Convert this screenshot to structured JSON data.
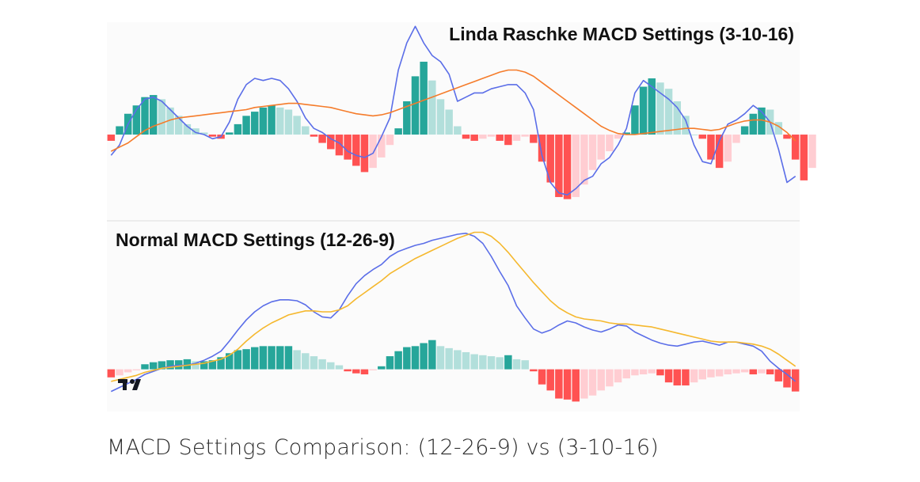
{
  "colors": {
    "hist_up_strong": "#26a69a",
    "hist_up_weak": "#b2dfdb",
    "hist_down_strong": "#ff5252",
    "hist_down_weak": "#ffcdd2",
    "macd_line": "#5b6ee8",
    "signal_top": "#f57c2b",
    "signal_bottom": "#f5b82e",
    "panel_bg": "#fbfbfb"
  },
  "logo": {
    "text": "TV"
  },
  "caption": "MACD Settings Comparison: (12-26-9) vs (3-10-16)",
  "chart_data": [
    {
      "type": "line",
      "title": "Linda Raschke MACD Settings (3-10-16)",
      "xlabel": "",
      "ylabel": "",
      "ylim": [
        -3.8,
        5.4
      ],
      "x": [
        0,
        1,
        2,
        3,
        4,
        5,
        6,
        7,
        8,
        9,
        10,
        11,
        12,
        13,
        14,
        15,
        16,
        17,
        18,
        19,
        20,
        21,
        22,
        23,
        24,
        25,
        26,
        27,
        28,
        29,
        30,
        31,
        32,
        33,
        34,
        35,
        36,
        37,
        38,
        39,
        40,
        41,
        42,
        43,
        44,
        45,
        46,
        47,
        48,
        49,
        50,
        51,
        52,
        53,
        54,
        55,
        56,
        57,
        58,
        59,
        60,
        61,
        62,
        63,
        64,
        65,
        66,
        67,
        68,
        69,
        70,
        71,
        72,
        73,
        74,
        75,
        76,
        77,
        78,
        79,
        80,
        81
      ],
      "histogram": [
        -0.3,
        0.4,
        1.0,
        1.4,
        1.8,
        1.9,
        1.7,
        1.3,
        0.9,
        0.5,
        0.3,
        0.1,
        -0.1,
        -0.2,
        0.1,
        0.5,
        0.9,
        1.1,
        1.3,
        1.4,
        1.3,
        1.2,
        0.9,
        0.4,
        -0.1,
        -0.4,
        -0.7,
        -1.0,
        -1.2,
        -1.5,
        -1.8,
        -1.6,
        -1.1,
        -0.5,
        0.3,
        1.6,
        2.8,
        3.5,
        2.6,
        1.7,
        1.2,
        0.4,
        -0.2,
        -0.3,
        -0.2,
        -0.1,
        -0.3,
        -0.5,
        -0.3,
        -0.1,
        -0.4,
        -1.3,
        -2.3,
        -3.0,
        -3.1,
        -3.0,
        -2.4,
        -1.7,
        -1.2,
        -0.8,
        -0.2,
        0.1,
        1.4,
        2.3,
        2.7,
        2.5,
        2.2,
        1.6,
        0.9,
        0.0,
        -0.2,
        -1.2,
        -1.6,
        -1.3,
        -0.4,
        0.4,
        1.0,
        1.3,
        1.2,
        0.6,
        -0.2,
        -1.2,
        -2.2,
        -1.6
      ],
      "series": [
        {
          "values": [
            -1.0,
            -0.5,
            0.5,
            1.2,
            1.7,
            1.8,
            1.6,
            1.2,
            0.8,
            0.4,
            0.1,
            0.0,
            -0.2,
            -0.1,
            0.6,
            1.7,
            2.4,
            2.7,
            2.6,
            2.7,
            2.6,
            2.2,
            1.6,
            0.8,
            0.3,
            0.1,
            -0.2,
            -0.4,
            -0.8,
            -1.0,
            -1.1,
            -0.9,
            -0.1,
            0.8,
            3.1,
            4.4,
            5.2,
            4.4,
            3.8,
            3.5,
            2.9,
            1.6,
            1.8,
            2.0,
            2.0,
            2.2,
            2.3,
            2.4,
            2.4,
            2.0,
            1.2,
            -1.0,
            -2.3,
            -2.8,
            -2.9,
            -2.6,
            -2.2,
            -2.0,
            -1.4,
            -1.1,
            -0.5,
            0.3,
            2.0,
            2.6,
            2.3,
            2.0,
            1.7,
            1.3,
            0.7,
            -0.5,
            -1.3,
            -1.4,
            -0.3,
            0.5,
            0.7,
            1.0,
            1.4,
            1.1,
            0.6,
            -0.7,
            -2.3,
            -2.0
          ]
        },
        {
          "values": [
            -0.8,
            -0.6,
            -0.4,
            -0.1,
            0.2,
            0.4,
            0.55,
            0.7,
            0.8,
            0.85,
            0.9,
            0.95,
            1.0,
            1.05,
            1.1,
            1.15,
            1.2,
            1.3,
            1.35,
            1.4,
            1.45,
            1.5,
            1.5,
            1.45,
            1.4,
            1.35,
            1.3,
            1.2,
            1.1,
            1.0,
            0.95,
            0.9,
            0.95,
            1.05,
            1.2,
            1.35,
            1.5,
            1.65,
            1.8,
            1.95,
            2.1,
            2.25,
            2.4,
            2.55,
            2.7,
            2.85,
            3.0,
            3.1,
            3.1,
            3.0,
            2.8,
            2.5,
            2.2,
            1.9,
            1.6,
            1.3,
            1.0,
            0.7,
            0.4,
            0.2,
            0.05,
            0.0,
            0.0,
            0.05,
            0.1,
            0.15,
            0.2,
            0.25,
            0.3,
            0.3,
            0.25,
            0.2,
            0.25,
            0.4,
            0.55,
            0.65,
            0.7,
            0.7,
            0.6,
            0.4,
            0.1,
            -0.3
          ]
        }
      ]
    },
    {
      "type": "line",
      "title": "Normal MACD Settings (12-26-9)",
      "xlabel": "",
      "ylabel": "",
      "ylim": [
        -3.8,
        14.5
      ],
      "x": [
        0,
        1,
        2,
        3,
        4,
        5,
        6,
        7,
        8,
        9,
        10,
        11,
        12,
        13,
        14,
        15,
        16,
        17,
        18,
        19,
        20,
        21,
        22,
        23,
        24,
        25,
        26,
        27,
        28,
        29,
        30,
        31,
        32,
        33,
        34,
        35,
        36,
        37,
        38,
        39,
        40,
        41,
        42,
        43,
        44,
        45,
        46,
        47,
        48,
        49,
        50,
        51,
        52,
        53,
        54,
        55,
        56,
        57,
        58,
        59,
        60,
        61,
        62,
        63,
        64,
        65,
        66,
        67,
        68,
        69,
        70,
        71,
        72,
        73,
        74,
        75,
        76,
        77,
        78,
        79,
        80,
        81
      ],
      "histogram": [
        -0.8,
        -0.6,
        -0.3,
        -0.1,
        0.5,
        0.7,
        0.8,
        0.9,
        0.9,
        1.0,
        0.8,
        0.8,
        0.9,
        1.2,
        1.6,
        1.9,
        2.0,
        2.2,
        2.3,
        2.3,
        2.3,
        2.3,
        1.9,
        1.6,
        1.3,
        1.0,
        0.7,
        0.4,
        -0.2,
        -0.4,
        -0.5,
        -0.1,
        0.3,
        1.3,
        1.8,
        2.2,
        2.3,
        2.6,
        2.9,
        2.3,
        2.1,
        1.9,
        1.7,
        1.5,
        1.4,
        1.3,
        1.2,
        1.4,
        1.0,
        0.9,
        -0.2,
        -1.5,
        -2.1,
        -2.9,
        -3.0,
        -3.2,
        -2.9,
        -2.6,
        -2.1,
        -1.7,
        -1.3,
        -0.9,
        -0.6,
        -0.5,
        -0.4,
        -0.6,
        -1.3,
        -1.6,
        -1.6,
        -1.3,
        -1.0,
        -0.8,
        -0.7,
        -0.5,
        -0.4,
        -0.3,
        -0.5,
        -0.4,
        -0.5,
        -1.2,
        -1.8,
        -2.2
      ],
      "series": [
        {
          "values": [
            -2.2,
            -1.8,
            -1.4,
            -1.0,
            -0.5,
            -0.2,
            0.1,
            0.3,
            0.4,
            0.4,
            0.6,
            0.9,
            1.3,
            1.8,
            2.8,
            3.9,
            4.9,
            5.7,
            6.3,
            6.7,
            6.9,
            6.9,
            6.8,
            6.4,
            5.7,
            5.2,
            5.1,
            5.9,
            7.3,
            8.5,
            9.3,
            9.9,
            10.4,
            11.2,
            11.7,
            12.0,
            12.3,
            12.5,
            12.8,
            13.0,
            13.2,
            13.4,
            13.5,
            13.2,
            12.5,
            11.2,
            9.7,
            8.3,
            6.3,
            5.1,
            4.0,
            3.6,
            3.9,
            4.4,
            4.8,
            4.6,
            4.2,
            3.9,
            3.7,
            4.0,
            4.4,
            4.3,
            3.7,
            3.3,
            2.9,
            2.6,
            2.4,
            2.3,
            2.5,
            2.7,
            2.8,
            2.6,
            2.4,
            2.7,
            2.7,
            2.5,
            2.3,
            1.8,
            0.8,
            0.1,
            -0.5,
            -1.2
          ]
        },
        {
          "values": [
            -1.2,
            -1.0,
            -0.8,
            -0.6,
            -0.3,
            -0.1,
            0.1,
            0.2,
            0.3,
            0.4,
            0.5,
            0.6,
            0.8,
            1.0,
            1.4,
            2.0,
            2.8,
            3.5,
            4.1,
            4.6,
            5.0,
            5.4,
            5.6,
            5.8,
            5.8,
            5.7,
            5.7,
            5.9,
            6.3,
            7.0,
            7.6,
            8.2,
            8.8,
            9.5,
            10.0,
            10.5,
            11.0,
            11.4,
            11.8,
            12.2,
            12.6,
            13.0,
            13.3,
            13.6,
            13.6,
            13.2,
            12.5,
            11.6,
            10.6,
            9.6,
            8.6,
            7.7,
            6.8,
            6.1,
            5.6,
            5.2,
            5.0,
            4.9,
            4.8,
            4.6,
            4.5,
            4.5,
            4.4,
            4.3,
            4.2,
            4.0,
            3.8,
            3.6,
            3.4,
            3.2,
            3.0,
            2.8,
            2.7,
            2.7,
            2.7,
            2.6,
            2.5,
            2.3,
            2.0,
            1.5,
            0.9,
            0.3
          ]
        }
      ]
    }
  ]
}
